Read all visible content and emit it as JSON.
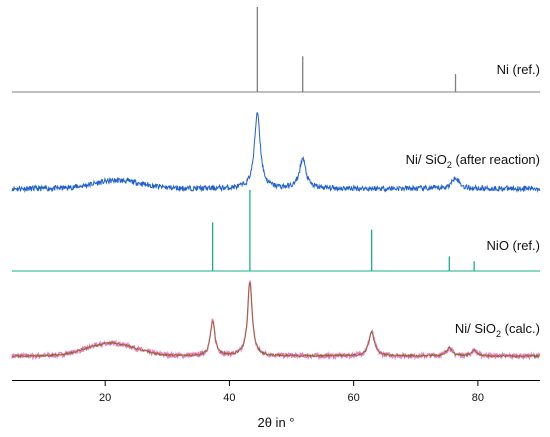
{
  "chart_data": {
    "type": "line",
    "title": "",
    "xlabel": "2θ in °",
    "ylabel": "",
    "xlim": [
      5,
      90
    ],
    "x_ticks": [
      20,
      40,
      60,
      80
    ],
    "grid": false,
    "legend": "none",
    "colors": {
      "ni_ref": "#7f7f7f",
      "ni_sio2_after": "#1f5fcf",
      "nio_ref": "#1bb08a",
      "measured": "#f07cc8",
      "calc": "#8a6a2a"
    },
    "reference_patterns": [
      {
        "name": "Ni (ref.)",
        "peaks": [
          {
            "x": 44.5,
            "intensity": 1.0
          },
          {
            "x": 51.8,
            "intensity": 0.42
          },
          {
            "x": 76.4,
            "intensity": 0.21
          }
        ]
      },
      {
        "name": "NiO (ref.)",
        "peaks": [
          {
            "x": 37.3,
            "intensity": 0.6
          },
          {
            "x": 43.3,
            "intensity": 1.0
          },
          {
            "x": 62.9,
            "intensity": 0.51
          },
          {
            "x": 75.4,
            "intensity": 0.18
          },
          {
            "x": 79.4,
            "intensity": 0.12
          }
        ]
      }
    ],
    "diffractograms": [
      {
        "name": "Ni/SiO2 (after reaction)",
        "label": {
          "main": "Ni/ SiO",
          "sub": "2",
          "rest": " (after reaction)"
        },
        "background": 0.06,
        "hump": {
          "center": 22,
          "width": 5.5,
          "height": 0.09
        },
        "noise": 0.03,
        "peaks": [
          {
            "x": 44.5,
            "height": 0.85,
            "width": 0.55
          },
          {
            "x": 51.8,
            "height": 0.33,
            "width": 0.6
          },
          {
            "x": 76.4,
            "height": 0.13,
            "width": 0.65
          }
        ]
      },
      {
        "name": "Ni/SiO2 (calc.)",
        "label": {
          "main": "Ni/ SiO",
          "sub": "2",
          "rest": " (calc.)"
        },
        "background": 0.05,
        "hump": {
          "center": 21,
          "width": 5.5,
          "height": 0.16
        },
        "noise": 0.022,
        "peaks": [
          {
            "x": 37.3,
            "height": 0.43,
            "width": 0.45
          },
          {
            "x": 43.3,
            "height": 0.92,
            "width": 0.45
          },
          {
            "x": 62.9,
            "height": 0.3,
            "width": 0.55
          },
          {
            "x": 75.4,
            "height": 0.1,
            "width": 0.55
          },
          {
            "x": 79.4,
            "height": 0.07,
            "width": 0.55
          }
        ]
      }
    ]
  }
}
